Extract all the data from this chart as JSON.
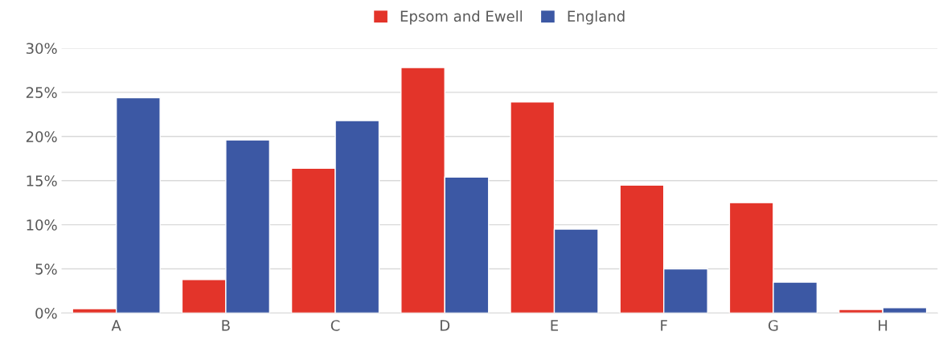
{
  "chart_data": {
    "type": "bar",
    "categories": [
      "A",
      "B",
      "C",
      "D",
      "E",
      "F",
      "G",
      "H"
    ],
    "series": [
      {
        "name": "Epsom and Ewell",
        "color": "#e3342a",
        "values": [
          0.5,
          3.8,
          16.4,
          27.8,
          23.9,
          14.5,
          12.5,
          0.4
        ]
      },
      {
        "name": "England",
        "color": "#3c58a4",
        "values": [
          24.4,
          19.6,
          21.8,
          15.4,
          9.5,
          5.0,
          3.5,
          0.6
        ]
      }
    ],
    "ylim": [
      0,
      30
    ],
    "yticks": [
      {
        "value": 0,
        "label": "0%"
      },
      {
        "value": 5,
        "label": "5%"
      },
      {
        "value": 10,
        "label": "10%"
      },
      {
        "value": 15,
        "label": "15%"
      },
      {
        "value": 20,
        "label": "20%"
      },
      {
        "value": 25,
        "label": "25%"
      },
      {
        "value": 30,
        "label": "30%"
      }
    ],
    "grid": "y",
    "legend": "top"
  }
}
